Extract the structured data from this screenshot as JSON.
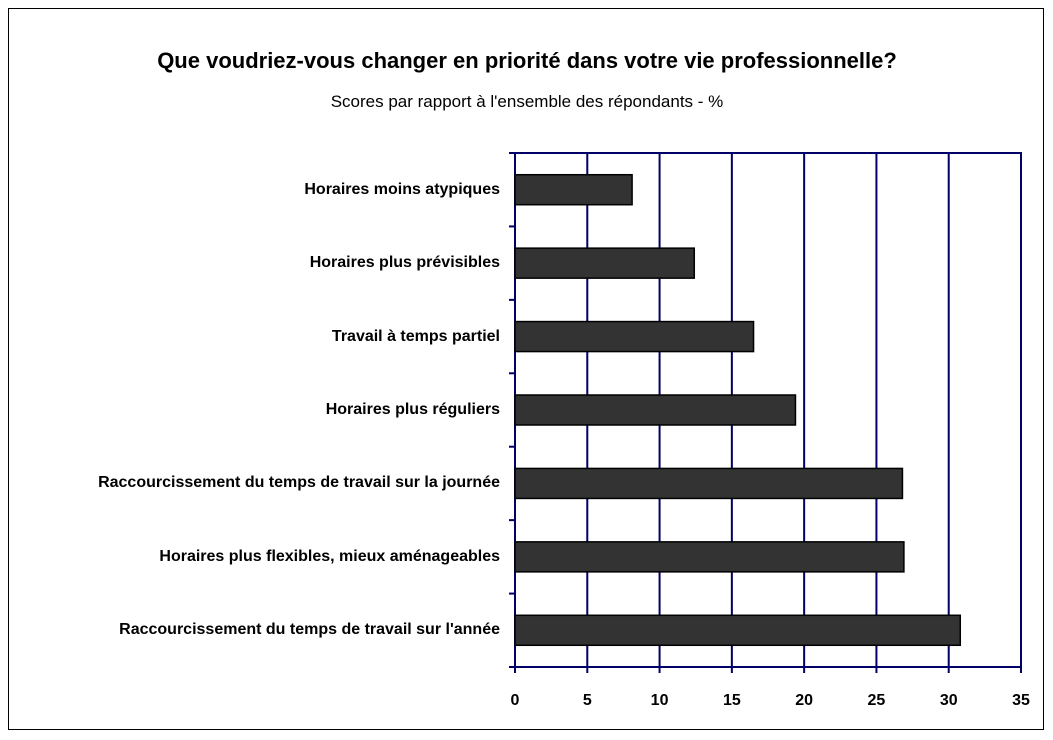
{
  "chart_data": {
    "type": "bar",
    "orientation": "horizontal",
    "title": "Que voudriez-vous changer en priorité dans votre vie professionnelle?",
    "subtitle": "Scores par rapport à l'ensemble des répondants - %",
    "categories": [
      "Horaires moins atypiques",
      "Horaires plus prévisibles",
      "Travail à temps partiel",
      "Horaires plus réguliers",
      "Raccourcissement du temps de travail sur la journée",
      "Horaires plus flexibles, mieux aménageables",
      "Raccourcissement du temps de travail sur l'année"
    ],
    "values": [
      8.1,
      12.4,
      16.5,
      19.4,
      26.8,
      26.9,
      30.8
    ],
    "color": "#333333",
    "xlim": [
      0,
      35
    ],
    "xticks": [
      0,
      5,
      10,
      15,
      20,
      25,
      30,
      35
    ],
    "grid": true
  }
}
